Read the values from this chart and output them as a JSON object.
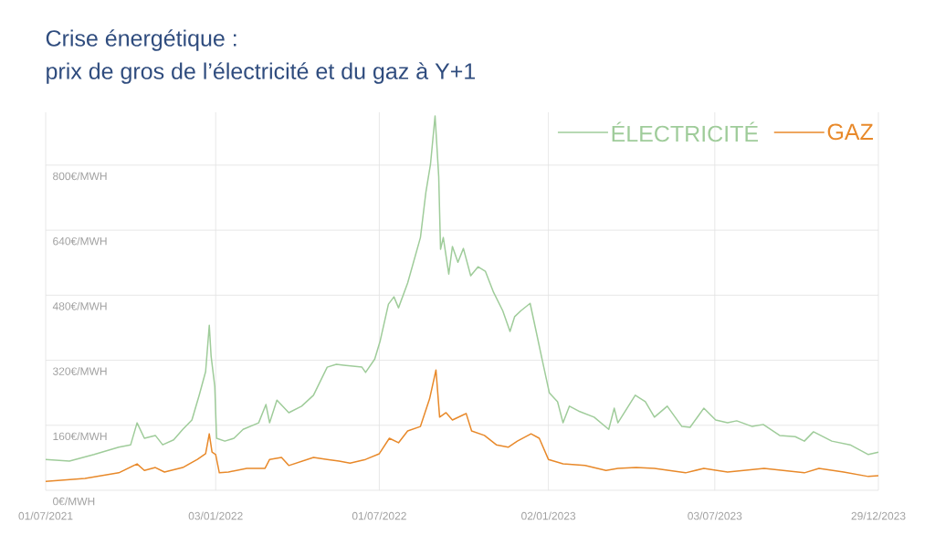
{
  "chart_data": {
    "type": "line",
    "title": "Crise énergétique :",
    "subtitle": "prix de gros de l’électricité et du gaz à Y+1",
    "xlim": [
      "2021-07-01",
      "2023-12-29"
    ],
    "xticks": [
      {
        "value": "2021-07-01",
        "label": "01/07/2021"
      },
      {
        "value": "2022-01-03",
        "label": "03/01/2022"
      },
      {
        "value": "2022-07-01",
        "label": "01/07/2022"
      },
      {
        "value": "2023-01-02",
        "label": "02/01/2023"
      },
      {
        "value": "2023-07-03",
        "label": "03/07/2023"
      },
      {
        "value": "2023-12-29",
        "label": "29/12/2023"
      }
    ],
    "ylim": [
      0,
      930
    ],
    "yticks": [
      {
        "value": 0,
        "label": "0€/MWH"
      },
      {
        "value": 160,
        "label": "160€/MWH"
      },
      {
        "value": 320,
        "label": "320€/MWH"
      },
      {
        "value": 480,
        "label": "480€/MWH"
      },
      {
        "value": 640,
        "label": "640€/MWH"
      },
      {
        "value": 800,
        "label": "800€/MWH"
      }
    ],
    "grid": true,
    "legend": "top right",
    "series": [
      {
        "name": "ÉLECTRICITÉ",
        "color": "#9fcc9a",
        "x": [
          "2021-07-01",
          "2021-07-27",
          "2021-08-23",
          "2021-09-19",
          "2021-10-02",
          "2021-10-09",
          "2021-10-17",
          "2021-10-29",
          "2021-11-06",
          "2021-11-18",
          "2021-11-28",
          "2021-12-08",
          "2021-12-16",
          "2021-12-23",
          "2021-12-27",
          "2021-12-29",
          "2022-01-02",
          "2022-01-04",
          "2022-01-13",
          "2022-01-23",
          "2022-02-02",
          "2022-02-19",
          "2022-02-27",
          "2022-03-03",
          "2022-03-11",
          "2022-03-24",
          "2022-04-07",
          "2022-04-20",
          "2022-05-05",
          "2022-05-15",
          "2022-05-23",
          "2022-06-12",
          "2022-06-16",
          "2022-06-26",
          "2022-07-02",
          "2022-07-11",
          "2022-07-17",
          "2022-07-22",
          "2022-08-01",
          "2022-08-15",
          "2022-08-21",
          "2022-08-26",
          "2022-08-31",
          "2022-09-04",
          "2022-09-06",
          "2022-09-09",
          "2022-09-15",
          "2022-09-19",
          "2022-09-25",
          "2022-10-01",
          "2022-10-09",
          "2022-10-17",
          "2022-10-25",
          "2022-11-03",
          "2022-11-13",
          "2022-11-21",
          "2022-11-26",
          "2022-12-03",
          "2022-12-13",
          "2022-12-19",
          "2022-12-26",
          "2023-01-03",
          "2023-01-12",
          "2023-01-18",
          "2023-01-25",
          "2023-02-04",
          "2023-02-21",
          "2023-03-09",
          "2023-03-15",
          "2023-03-19",
          "2023-04-07",
          "2023-04-18",
          "2023-04-28",
          "2023-05-12",
          "2023-05-28",
          "2023-06-06",
          "2023-06-21",
          "2023-07-04",
          "2023-07-17",
          "2023-07-27",
          "2023-08-13",
          "2023-08-25",
          "2023-09-12",
          "2023-09-29",
          "2023-10-09",
          "2023-10-19",
          "2023-11-08",
          "2023-11-28",
          "2023-12-18",
          "2023-12-29"
        ],
        "values": [
          76,
          72,
          88,
          106,
          112,
          166,
          128,
          135,
          112,
          124,
          150,
          173,
          234,
          292,
          406,
          330,
          256,
          128,
          121,
          128,
          150,
          166,
          211,
          166,
          222,
          191,
          207,
          234,
          303,
          310,
          308,
          303,
          290,
          323,
          368,
          458,
          476,
          449,
          510,
          622,
          734,
          802,
          921,
          772,
          593,
          622,
          532,
          600,
          561,
          595,
          528,
          550,
          539,
          487,
          442,
          391,
          427,
          442,
          460,
          397,
          323,
          240,
          218,
          166,
          207,
          195,
          180,
          150,
          202,
          166,
          234,
          218,
          180,
          207,
          157,
          155,
          202,
          173,
          166,
          171,
          157,
          162,
          135,
          132,
          121,
          144,
          121,
          112,
          88,
          94
        ]
      },
      {
        "name": "GAZ",
        "color": "#e8892a",
        "x": [
          "2021-07-01",
          "2021-08-13",
          "2021-09-19",
          "2021-10-09",
          "2021-10-17",
          "2021-10-29",
          "2021-11-08",
          "2021-11-28",
          "2021-12-14",
          "2021-12-23",
          "2021-12-27",
          "2021-12-30",
          "2022-01-03",
          "2022-01-07",
          "2022-01-17",
          "2022-02-06",
          "2022-02-26",
          "2022-03-03",
          "2022-03-16",
          "2022-03-24",
          "2022-04-20",
          "2022-05-05",
          "2022-05-18",
          "2022-05-30",
          "2022-06-16",
          "2022-07-01",
          "2022-07-12",
          "2022-07-22",
          "2022-08-01",
          "2022-08-15",
          "2022-08-25",
          "2022-09-01",
          "2022-09-05",
          "2022-09-12",
          "2022-09-19",
          "2022-10-04",
          "2022-10-10",
          "2022-10-24",
          "2022-11-06",
          "2022-11-19",
          "2022-11-29",
          "2022-12-14",
          "2022-12-23",
          "2023-01-02",
          "2023-01-18",
          "2023-02-11",
          "2023-03-06",
          "2023-03-19",
          "2023-04-08",
          "2023-04-28",
          "2023-06-01",
          "2023-06-21",
          "2023-07-17",
          "2023-08-26",
          "2023-10-09",
          "2023-10-25",
          "2023-11-21",
          "2023-12-18",
          "2023-12-29"
        ],
        "values": [
          22,
          29,
          43,
          65,
          49,
          56,
          45,
          56,
          76,
          90,
          139,
          94,
          88,
          43,
          45,
          54,
          54,
          76,
          81,
          61,
          81,
          76,
          72,
          67,
          76,
          90,
          128,
          117,
          146,
          157,
          225,
          296,
          180,
          191,
          173,
          189,
          146,
          135,
          112,
          106,
          121,
          139,
          128,
          76,
          65,
          61,
          49,
          54,
          56,
          54,
          43,
          54,
          45,
          54,
          43,
          54,
          45,
          34,
          36
        ]
      }
    ]
  }
}
